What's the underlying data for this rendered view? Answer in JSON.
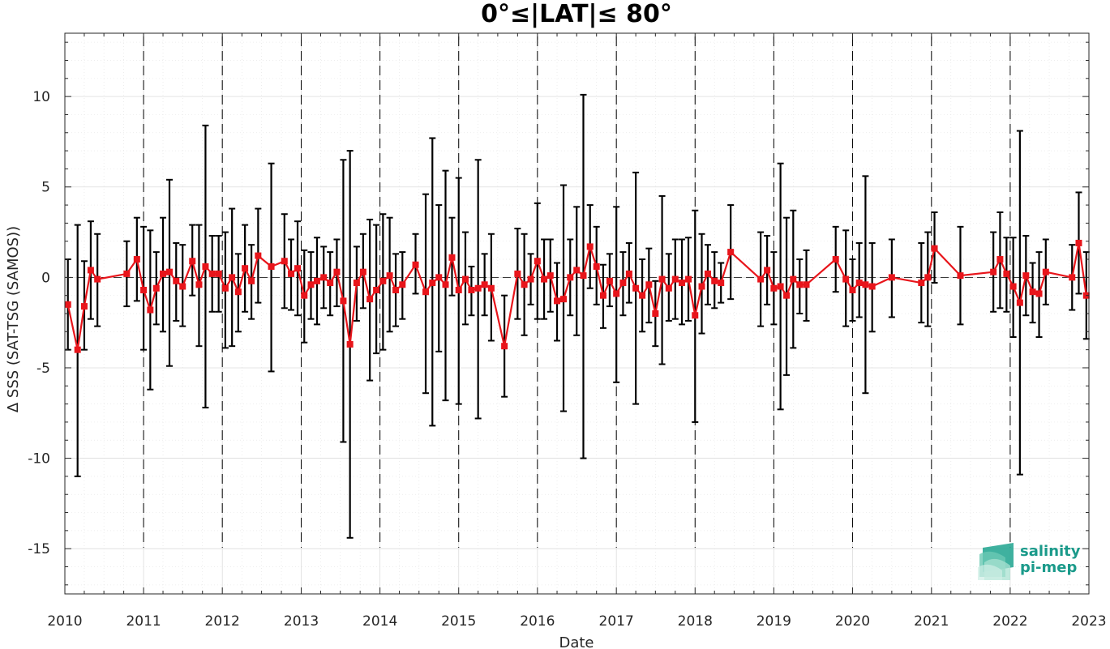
{
  "chart_data": {
    "type": "line",
    "title": "0°≤|LAT|≤ 80°",
    "xlabel": "Date",
    "ylabel": "Δ SSS (SAT-TSG (SAMOS))",
    "xlim": [
      "2010-01-01",
      "2023-01-01"
    ],
    "ylim": [
      -17.5,
      13.5
    ],
    "x_ticks": [
      "2010",
      "2011",
      "2012",
      "2013",
      "2014",
      "2015",
      "2016",
      "2017",
      "2018",
      "2019",
      "2020",
      "2021",
      "2022",
      "2023"
    ],
    "y_ticks": [
      10,
      5,
      0,
      -5,
      -10,
      -15
    ],
    "y_tick_labels": [
      "10",
      "5",
      "0",
      "-5",
      "-10",
      "-15"
    ],
    "grid": true,
    "year_boundary_lines": "dashed",
    "zero_line": "dashed",
    "series": [
      {
        "color": "#e8151b",
        "errorbar_color": "#000000",
        "marker": "square",
        "points": [
          {
            "x": "2010-01-15",
            "y": -1.5,
            "lo": -4.0,
            "hi": 1.0
          },
          {
            "x": "2010-03-01",
            "y": -4.0,
            "lo": -11.0,
            "hi": 2.9
          },
          {
            "x": "2010-04-01",
            "y": -1.6,
            "lo": -4.0,
            "hi": 0.9
          },
          {
            "x": "2010-05-01",
            "y": 0.4,
            "lo": -2.3,
            "hi": 3.1
          },
          {
            "x": "2010-06-01",
            "y": -0.1,
            "lo": -2.7,
            "hi": 2.4
          },
          {
            "x": "2010-10-15",
            "y": 0.2,
            "lo": -1.6,
            "hi": 2.0
          },
          {
            "x": "2010-12-01",
            "y": 1.0,
            "lo": -1.3,
            "hi": 3.3
          },
          {
            "x": "2011-01-01",
            "y": -0.7,
            "lo": -4.0,
            "hi": 2.8
          },
          {
            "x": "2011-02-01",
            "y": -1.8,
            "lo": -6.2,
            "hi": 2.6
          },
          {
            "x": "2011-03-01",
            "y": -0.6,
            "lo": -2.6,
            "hi": 1.4
          },
          {
            "x": "2011-04-01",
            "y": 0.2,
            "lo": -3.0,
            "hi": 3.3
          },
          {
            "x": "2011-05-01",
            "y": 0.3,
            "lo": -4.9,
            "hi": 5.4
          },
          {
            "x": "2011-06-01",
            "y": -0.2,
            "lo": -2.4,
            "hi": 1.9
          },
          {
            "x": "2011-07-01",
            "y": -0.5,
            "lo": -2.7,
            "hi": 1.8
          },
          {
            "x": "2011-08-15",
            "y": 0.9,
            "lo": -1.0,
            "hi": 2.9
          },
          {
            "x": "2011-09-15",
            "y": -0.4,
            "lo": -3.8,
            "hi": 2.9
          },
          {
            "x": "2011-10-15",
            "y": 0.6,
            "lo": -7.2,
            "hi": 8.4
          },
          {
            "x": "2011-11-15",
            "y": 0.2,
            "lo": -1.9,
            "hi": 2.3
          },
          {
            "x": "2011-12-15",
            "y": 0.2,
            "lo": -1.9,
            "hi": 2.3
          },
          {
            "x": "2012-01-15",
            "y": -0.6,
            "lo": -3.9,
            "hi": 2.5
          },
          {
            "x": "2012-02-15",
            "y": 0.0,
            "lo": -3.8,
            "hi": 3.8
          },
          {
            "x": "2012-03-15",
            "y": -0.8,
            "lo": -3.0,
            "hi": 1.3
          },
          {
            "x": "2012-04-15",
            "y": 0.5,
            "lo": -1.9,
            "hi": 2.9
          },
          {
            "x": "2012-05-15",
            "y": -0.2,
            "lo": -2.3,
            "hi": 1.8
          },
          {
            "x": "2012-06-15",
            "y": 1.2,
            "lo": -1.4,
            "hi": 3.8
          },
          {
            "x": "2012-08-15",
            "y": 0.6,
            "lo": -5.2,
            "hi": 6.3
          },
          {
            "x": "2012-10-15",
            "y": 0.9,
            "lo": -1.7,
            "hi": 3.5
          },
          {
            "x": "2012-11-15",
            "y": 0.2,
            "lo": -1.8,
            "hi": 2.1
          },
          {
            "x": "2012-12-15",
            "y": 0.5,
            "lo": -2.1,
            "hi": 3.1
          },
          {
            "x": "2013-01-15",
            "y": -1.0,
            "lo": -3.6,
            "hi": 1.5
          },
          {
            "x": "2013-02-15",
            "y": -0.4,
            "lo": -2.3,
            "hi": 1.4
          },
          {
            "x": "2013-03-15",
            "y": -0.2,
            "lo": -2.6,
            "hi": 2.2
          },
          {
            "x": "2013-04-15",
            "y": 0.0,
            "lo": -1.7,
            "hi": 1.7
          },
          {
            "x": "2013-05-15",
            "y": -0.3,
            "lo": -2.1,
            "hi": 1.4
          },
          {
            "x": "2013-06-15",
            "y": 0.3,
            "lo": -1.6,
            "hi": 2.1
          },
          {
            "x": "2013-07-15",
            "y": -1.3,
            "lo": -9.1,
            "hi": 6.5
          },
          {
            "x": "2013-08-15",
            "y": -3.7,
            "lo": -14.4,
            "hi": 7.0
          },
          {
            "x": "2013-09-15",
            "y": -0.3,
            "lo": -2.4,
            "hi": 1.7
          },
          {
            "x": "2013-10-15",
            "y": 0.3,
            "lo": -1.7,
            "hi": 2.4
          },
          {
            "x": "2013-11-15",
            "y": -1.2,
            "lo": -5.7,
            "hi": 3.2
          },
          {
            "x": "2013-12-15",
            "y": -0.7,
            "lo": -4.2,
            "hi": 2.9
          },
          {
            "x": "2014-01-15",
            "y": -0.2,
            "lo": -4.0,
            "hi": 3.5
          },
          {
            "x": "2014-02-15",
            "y": 0.1,
            "lo": -3.0,
            "hi": 3.3
          },
          {
            "x": "2014-03-15",
            "y": -0.7,
            "lo": -2.7,
            "hi": 1.3
          },
          {
            "x": "2014-04-15",
            "y": -0.4,
            "lo": -2.3,
            "hi": 1.4
          },
          {
            "x": "2014-06-15",
            "y": 0.7,
            "lo": -0.9,
            "hi": 2.4
          },
          {
            "x": "2014-08-01",
            "y": -0.8,
            "lo": -6.4,
            "hi": 4.6
          },
          {
            "x": "2014-09-01",
            "y": -0.3,
            "lo": -8.2,
            "hi": 7.7
          },
          {
            "x": "2014-10-01",
            "y": 0.0,
            "lo": -4.1,
            "hi": 4.0
          },
          {
            "x": "2014-11-01",
            "y": -0.4,
            "lo": -6.8,
            "hi": 5.9
          },
          {
            "x": "2014-12-01",
            "y": 1.1,
            "lo": -1.0,
            "hi": 3.3
          },
          {
            "x": "2015-01-01",
            "y": -0.7,
            "lo": -7.0,
            "hi": 5.5
          },
          {
            "x": "2015-02-01",
            "y": -0.1,
            "lo": -2.6,
            "hi": 2.5
          },
          {
            "x": "2015-03-01",
            "y": -0.7,
            "lo": -2.1,
            "hi": 0.6
          },
          {
            "x": "2015-04-01",
            "y": -0.6,
            "lo": -7.8,
            "hi": 6.5
          },
          {
            "x": "2015-05-01",
            "y": -0.4,
            "lo": -2.1,
            "hi": 1.3
          },
          {
            "x": "2015-06-01",
            "y": -0.6,
            "lo": -3.5,
            "hi": 2.4
          },
          {
            "x": "2015-08-01",
            "y": -3.8,
            "lo": -6.6,
            "hi": -1.0
          },
          {
            "x": "2015-10-01",
            "y": 0.2,
            "lo": -2.3,
            "hi": 2.7
          },
          {
            "x": "2015-11-01",
            "y": -0.4,
            "lo": -3.2,
            "hi": 2.4
          },
          {
            "x": "2015-12-01",
            "y": -0.1,
            "lo": -1.5,
            "hi": 1.3
          },
          {
            "x": "2016-01-01",
            "y": 0.9,
            "lo": -2.3,
            "hi": 4.1
          },
          {
            "x": "2016-02-01",
            "y": -0.1,
            "lo": -2.3,
            "hi": 2.1
          },
          {
            "x": "2016-03-01",
            "y": 0.1,
            "lo": -1.9,
            "hi": 2.1
          },
          {
            "x": "2016-04-01",
            "y": -1.3,
            "lo": -3.5,
            "hi": 0.8
          },
          {
            "x": "2016-05-01",
            "y": -1.2,
            "lo": -7.4,
            "hi": 5.1
          },
          {
            "x": "2016-06-01",
            "y": 0.0,
            "lo": -2.1,
            "hi": 2.1
          },
          {
            "x": "2016-07-01",
            "y": 0.4,
            "lo": -3.2,
            "hi": 3.9
          },
          {
            "x": "2016-08-01",
            "y": 0.1,
            "lo": -10.0,
            "hi": 10.1
          },
          {
            "x": "2016-09-01",
            "y": 1.7,
            "lo": -0.6,
            "hi": 4.0
          },
          {
            "x": "2016-10-01",
            "y": 0.6,
            "lo": -1.5,
            "hi": 2.8
          },
          {
            "x": "2016-11-01",
            "y": -1.0,
            "lo": -2.8,
            "hi": 0.7
          },
          {
            "x": "2016-12-01",
            "y": -0.2,
            "lo": -1.6,
            "hi": 1.3
          },
          {
            "x": "2017-01-01",
            "y": -0.9,
            "lo": -5.8,
            "hi": 3.9
          },
          {
            "x": "2017-02-01",
            "y": -0.3,
            "lo": -2.1,
            "hi": 1.4
          },
          {
            "x": "2017-03-01",
            "y": 0.2,
            "lo": -1.4,
            "hi": 1.9
          },
          {
            "x": "2017-04-01",
            "y": -0.6,
            "lo": -7.0,
            "hi": 5.8
          },
          {
            "x": "2017-05-01",
            "y": -1.0,
            "lo": -3.0,
            "hi": 1.0
          },
          {
            "x": "2017-06-01",
            "y": -0.4,
            "lo": -2.5,
            "hi": 1.6
          },
          {
            "x": "2017-07-01",
            "y": -2.0,
            "lo": -3.8,
            "hi": -0.2
          },
          {
            "x": "2017-08-01",
            "y": -0.1,
            "lo": -4.8,
            "hi": 4.5
          },
          {
            "x": "2017-09-01",
            "y": -0.6,
            "lo": -2.4,
            "hi": 1.3
          },
          {
            "x": "2017-10-01",
            "y": -0.1,
            "lo": -2.3,
            "hi": 2.1
          },
          {
            "x": "2017-11-01",
            "y": -0.3,
            "lo": -2.6,
            "hi": 2.1
          },
          {
            "x": "2017-12-01",
            "y": -0.1,
            "lo": -2.4,
            "hi": 2.2
          },
          {
            "x": "2018-01-01",
            "y": -2.1,
            "lo": -8.0,
            "hi": 3.7
          },
          {
            "x": "2018-02-01",
            "y": -0.5,
            "lo": -3.1,
            "hi": 2.4
          },
          {
            "x": "2018-03-01",
            "y": 0.2,
            "lo": -1.5,
            "hi": 1.8
          },
          {
            "x": "2018-04-01",
            "y": -0.2,
            "lo": -1.7,
            "hi": 1.4
          },
          {
            "x": "2018-05-01",
            "y": -0.3,
            "lo": -1.4,
            "hi": 0.8
          },
          {
            "x": "2018-06-15",
            "y": 1.4,
            "lo": -1.2,
            "hi": 4.0
          },
          {
            "x": "2018-11-01",
            "y": -0.1,
            "lo": -2.7,
            "hi": 2.5
          },
          {
            "x": "2018-12-01",
            "y": 0.4,
            "lo": -1.5,
            "hi": 2.3
          },
          {
            "x": "2019-01-01",
            "y": -0.6,
            "lo": -2.6,
            "hi": 1.4
          },
          {
            "x": "2019-02-01",
            "y": -0.5,
            "lo": -7.3,
            "hi": 6.3
          },
          {
            "x": "2019-03-01",
            "y": -1.0,
            "lo": -5.4,
            "hi": 3.3
          },
          {
            "x": "2019-04-01",
            "y": -0.1,
            "lo": -3.9,
            "hi": 3.7
          },
          {
            "x": "2019-05-01",
            "y": -0.4,
            "lo": -2.0,
            "hi": 1.0
          },
          {
            "x": "2019-06-01",
            "y": -0.4,
            "lo": -2.4,
            "hi": 1.5
          },
          {
            "x": "2019-10-15",
            "y": 1.0,
            "lo": -0.8,
            "hi": 2.8
          },
          {
            "x": "2019-12-01",
            "y": -0.1,
            "lo": -2.7,
            "hi": 2.6
          },
          {
            "x": "2020-01-01",
            "y": -0.7,
            "lo": -2.4,
            "hi": 1.0
          },
          {
            "x": "2020-02-01",
            "y": -0.3,
            "lo": -2.2,
            "hi": 1.9
          },
          {
            "x": "2020-03-01",
            "y": -0.4,
            "lo": -6.4,
            "hi": 5.6
          },
          {
            "x": "2020-04-01",
            "y": -0.5,
            "lo": -3.0,
            "hi": 1.9
          },
          {
            "x": "2020-07-01",
            "y": 0.0,
            "lo": -2.2,
            "hi": 2.1
          },
          {
            "x": "2020-11-15",
            "y": -0.3,
            "lo": -2.5,
            "hi": 1.9
          },
          {
            "x": "2020-12-15",
            "y": 0.0,
            "lo": -2.7,
            "hi": 2.5
          },
          {
            "x": "2021-01-15",
            "y": 1.6,
            "lo": -0.3,
            "hi": 3.6
          },
          {
            "x": "2021-05-15",
            "y": 0.1,
            "lo": -2.6,
            "hi": 2.8
          },
          {
            "x": "2021-10-15",
            "y": 0.3,
            "lo": -1.9,
            "hi": 2.5
          },
          {
            "x": "2021-11-15",
            "y": 1.0,
            "lo": -1.7,
            "hi": 3.6
          },
          {
            "x": "2021-12-15",
            "y": 0.2,
            "lo": -1.9,
            "hi": 2.2
          },
          {
            "x": "2022-01-15",
            "y": -0.5,
            "lo": -3.3,
            "hi": 2.2
          },
          {
            "x": "2022-02-15",
            "y": -1.4,
            "lo": -10.9,
            "hi": 8.1
          },
          {
            "x": "2022-03-15",
            "y": 0.1,
            "lo": -2.1,
            "hi": 2.3
          },
          {
            "x": "2022-04-15",
            "y": -0.8,
            "lo": -2.5,
            "hi": 0.8
          },
          {
            "x": "2022-05-15",
            "y": -0.9,
            "lo": -3.3,
            "hi": 1.4
          },
          {
            "x": "2022-06-15",
            "y": 0.3,
            "lo": -1.5,
            "hi": 2.1
          },
          {
            "x": "2022-10-15",
            "y": 0.0,
            "lo": -1.8,
            "hi": 1.8
          },
          {
            "x": "2022-11-15",
            "y": 1.9,
            "lo": -0.9,
            "hi": 4.7
          },
          {
            "x": "2022-12-20",
            "y": -1.0,
            "lo": -3.4,
            "hi": 1.4
          }
        ]
      }
    ]
  },
  "logo": {
    "line1": "salinity",
    "line2": "pi-mep",
    "color": "#1a9a8a"
  }
}
